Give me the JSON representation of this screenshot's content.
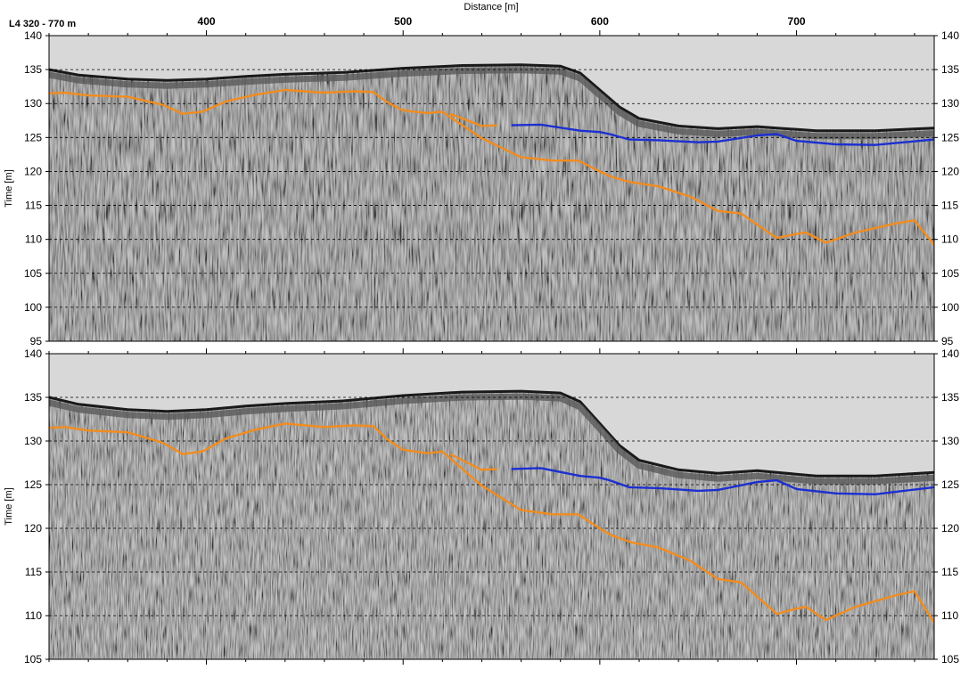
{
  "line_title": "L4 320 - 770 m",
  "colors": {
    "air": "#d8d8d8",
    "ground_gray": "#808080",
    "surface_edge": "#1a1a1a",
    "orange_horizon": "#f28c1e",
    "blue_horizon": "#1c2fd1",
    "grid": "#000000"
  },
  "chart_data": [
    {
      "type": "line",
      "panel": "top",
      "title": "L4 320 - 770 m",
      "xlabel": "Distance [m]",
      "ylabel": "Time [m]",
      "xlim": [
        320,
        770
      ],
      "ylim": [
        95,
        140
      ],
      "grid": "horizontal dashed",
      "x_ticks": [
        "400",
        "500",
        "600",
        "700"
      ],
      "y_ticks": [
        "140",
        "135",
        "130",
        "125",
        "120",
        "115",
        "110",
        "105",
        "100",
        "95"
      ],
      "surface": {
        "x": [
          320,
          335,
          360,
          380,
          400,
          420,
          440,
          470,
          500,
          530,
          560,
          580,
          590,
          600,
          610,
          620,
          640,
          660,
          680,
          690,
          710,
          740,
          770
        ],
        "y": [
          135,
          134.2,
          133.6,
          133.4,
          133.6,
          134.0,
          134.3,
          134.6,
          135.2,
          135.6,
          135.7,
          135.5,
          134.5,
          132.0,
          129.5,
          127.8,
          126.7,
          126.3,
          126.6,
          126.4,
          126.0,
          126.0,
          126.4
        ]
      },
      "series": [
        {
          "color": "#f28c1e",
          "x": [
            320,
            328,
            340,
            360,
            378,
            388,
            398,
            410,
            425,
            440,
            460,
            475,
            485,
            492,
            500,
            512,
            520,
            540,
            560,
            576,
            589,
            600,
            606,
            616,
            630,
            646,
            660,
            672,
            690,
            700,
            705,
            715,
            730,
            750,
            760,
            770
          ],
          "y": [
            131.5,
            131.6,
            131.2,
            131.0,
            129.8,
            128.5,
            128.8,
            130.3,
            131.3,
            132.0,
            131.6,
            131.8,
            131.7,
            130.2,
            129.0,
            128.6,
            128.8,
            124.9,
            122.1,
            121.6,
            121.6,
            120.0,
            119.2,
            118.4,
            117.8,
            116.3,
            114.2,
            113.8,
            110.2,
            110.8,
            111.0,
            109.5,
            111.0,
            112.3,
            112.8,
            109.2
          ]
        },
        {
          "color": "#f28c1e",
          "x": [
            524,
            540,
            548
          ],
          "y": [
            128.5,
            126.7,
            126.8
          ]
        },
        {
          "color": "#1c2fd1",
          "x": [
            555,
            570,
            590,
            600,
            605,
            615,
            630,
            650,
            660,
            680,
            690,
            700,
            720,
            740,
            770
          ],
          "y": [
            126.8,
            126.9,
            126.0,
            125.8,
            125.5,
            124.7,
            124.6,
            124.3,
            124.4,
            125.3,
            125.5,
            124.5,
            124.0,
            123.9,
            124.7
          ]
        }
      ]
    },
    {
      "type": "line",
      "panel": "bottom",
      "xlabel": "",
      "ylabel": "Time [m]",
      "xlim": [
        320,
        770
      ],
      "ylim": [
        105,
        140
      ],
      "grid": "horizontal dashed",
      "y_ticks": [
        "140",
        "135",
        "130",
        "125",
        "120",
        "115",
        "110",
        "105"
      ],
      "surface": {
        "x": [
          320,
          335,
          360,
          380,
          400,
          420,
          440,
          470,
          500,
          530,
          560,
          580,
          590,
          600,
          610,
          620,
          640,
          660,
          680,
          690,
          710,
          740,
          770
        ],
        "y": [
          135,
          134.2,
          133.6,
          133.4,
          133.6,
          134.0,
          134.3,
          134.6,
          135.2,
          135.6,
          135.7,
          135.5,
          134.5,
          132.0,
          129.5,
          127.8,
          126.7,
          126.3,
          126.6,
          126.4,
          126.0,
          126.0,
          126.4
        ]
      },
      "series": [
        {
          "color": "#f28c1e",
          "x": [
            320,
            328,
            340,
            360,
            378,
            388,
            398,
            410,
            425,
            440,
            460,
            475,
            485,
            492,
            500,
            512,
            520,
            540,
            560,
            576,
            589,
            600,
            606,
            616,
            630,
            646,
            660,
            672,
            690,
            700,
            705,
            715,
            730,
            750,
            760,
            770
          ],
          "y": [
            131.5,
            131.6,
            131.2,
            131.0,
            129.8,
            128.5,
            128.8,
            130.3,
            131.3,
            132.0,
            131.6,
            131.8,
            131.7,
            130.2,
            129.0,
            128.6,
            128.8,
            124.9,
            122.1,
            121.6,
            121.6,
            120.0,
            119.2,
            118.4,
            117.8,
            116.3,
            114.2,
            113.8,
            110.2,
            110.8,
            111.0,
            109.5,
            111.0,
            112.3,
            112.8,
            109.2
          ]
        },
        {
          "color": "#f28c1e",
          "x": [
            524,
            540,
            548
          ],
          "y": [
            128.5,
            126.7,
            126.8
          ]
        },
        {
          "color": "#1c2fd1",
          "x": [
            555,
            570,
            590,
            600,
            605,
            615,
            630,
            650,
            660,
            680,
            690,
            700,
            720,
            740,
            770
          ],
          "y": [
            126.8,
            126.9,
            126.0,
            125.8,
            125.5,
            124.7,
            124.6,
            124.3,
            124.4,
            125.3,
            125.5,
            124.5,
            124.0,
            123.9,
            124.7
          ]
        }
      ]
    }
  ]
}
